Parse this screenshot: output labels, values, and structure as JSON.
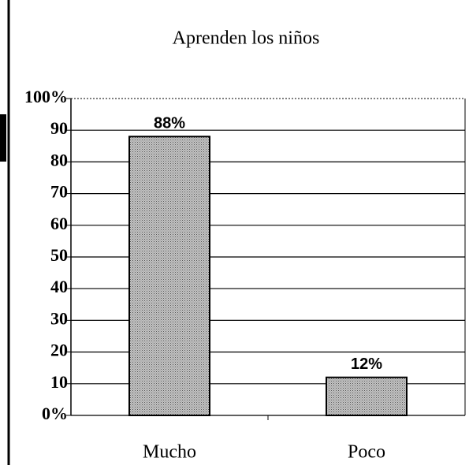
{
  "chart_data": {
    "type": "bar",
    "title": "Aprenden los niños",
    "categories": [
      "Mucho",
      "Poco"
    ],
    "values": [
      88,
      12
    ],
    "value_labels": [
      "88%",
      "12%"
    ],
    "color": "#c4c4c4",
    "ylim": [
      0,
      100
    ],
    "yticks": [
      {
        "value": 0,
        "label": "0%"
      },
      10,
      20,
      30,
      40,
      50,
      60,
      70,
      80,
      90,
      {
        "value": 100,
        "label": "100%"
      }
    ],
    "grid": true
  }
}
